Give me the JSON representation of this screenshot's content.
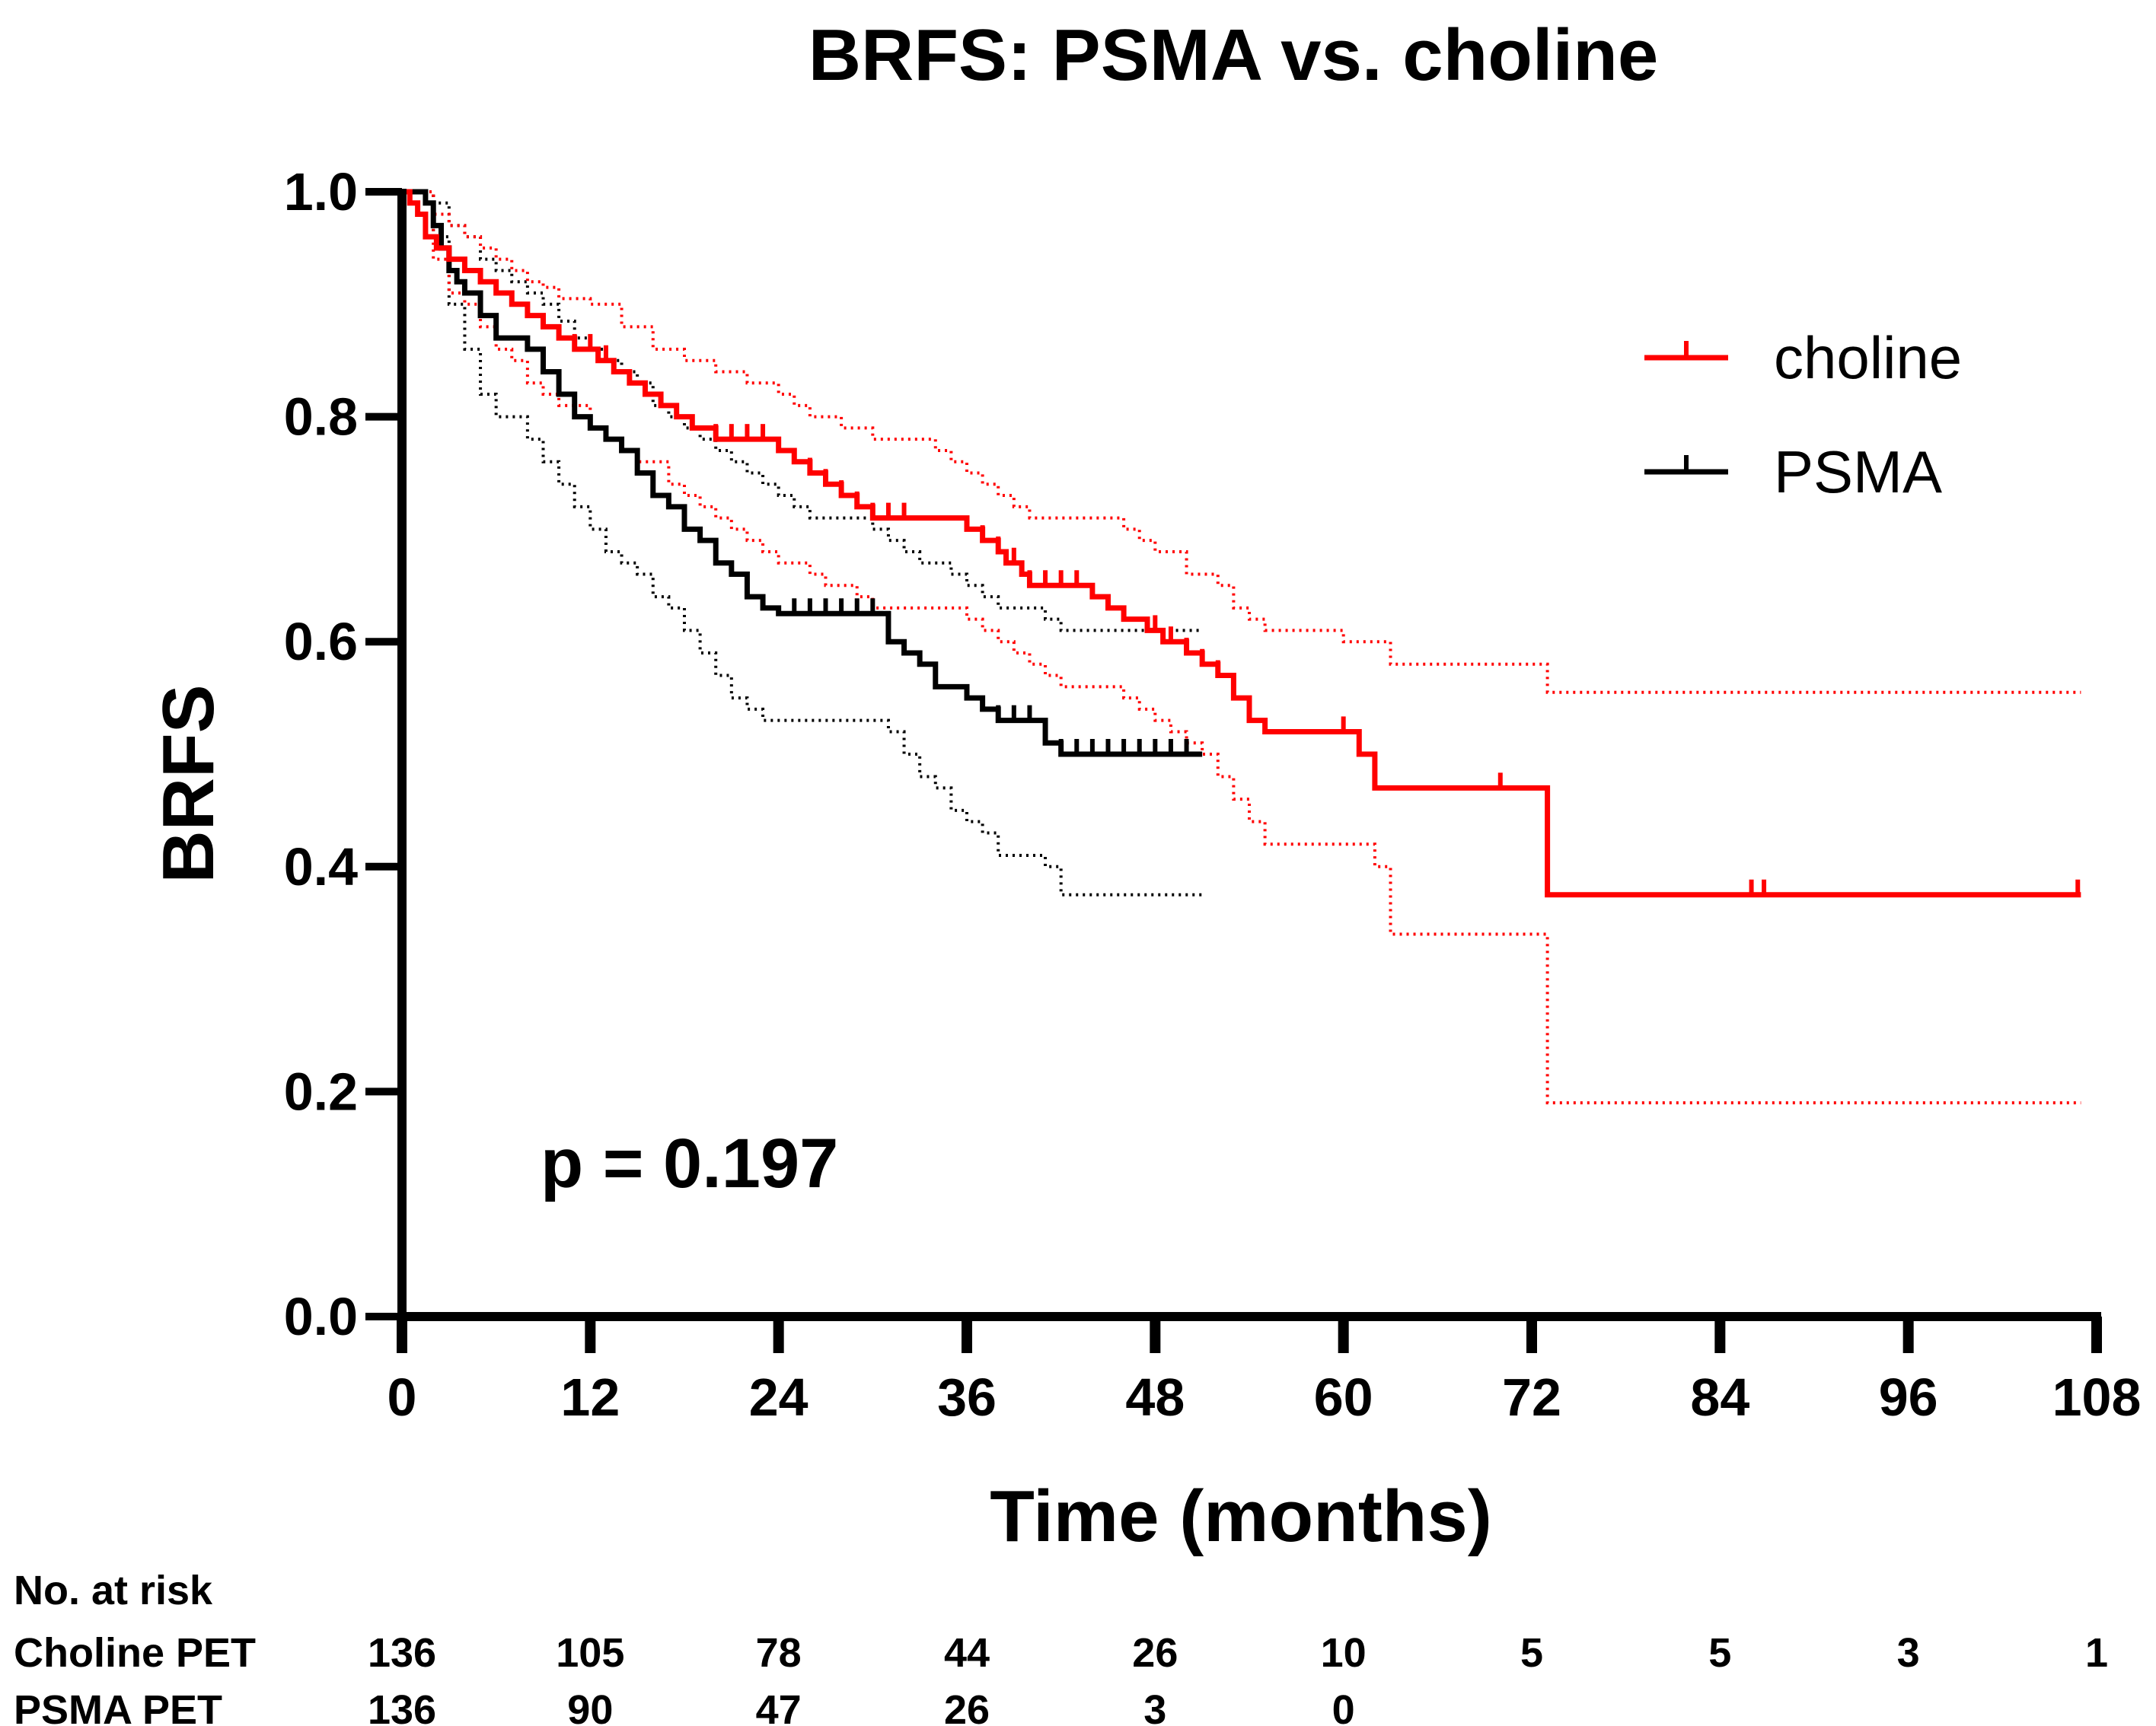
{
  "chart_data": {
    "type": "line",
    "subtype": "kaplan-meier",
    "title": "BRFS: PSMA vs. choline",
    "xlabel": "Time (months)",
    "ylabel": "BRFS",
    "xlim": [
      0,
      108
    ],
    "ylim": [
      0,
      1.0
    ],
    "xticks": [
      0,
      12,
      24,
      36,
      48,
      60,
      72,
      84,
      96,
      108
    ],
    "yticks": [
      0.0,
      0.2,
      0.4,
      0.6,
      0.8,
      1.0
    ],
    "ytick_labels": [
      "0.0",
      "0.2",
      "0.4",
      "0.6",
      "0.8",
      "1.0"
    ],
    "annotation": "p = 0.197",
    "legend_position": "top-right",
    "series": [
      {
        "name": "choline",
        "color": "#ff0000",
        "steps": [
          [
            0,
            1.0
          ],
          [
            0.5,
            0.99
          ],
          [
            1,
            0.98
          ],
          [
            1.5,
            0.96
          ],
          [
            2.2,
            0.95
          ],
          [
            3,
            0.94
          ],
          [
            4,
            0.93
          ],
          [
            5,
            0.92
          ],
          [
            6,
            0.91
          ],
          [
            7,
            0.9
          ],
          [
            8,
            0.89
          ],
          [
            9,
            0.88
          ],
          [
            10,
            0.87
          ],
          [
            11,
            0.86
          ],
          [
            12.5,
            0.85
          ],
          [
            13.5,
            0.84
          ],
          [
            14.5,
            0.83
          ],
          [
            15.5,
            0.82
          ],
          [
            16.5,
            0.81
          ],
          [
            17.5,
            0.8
          ],
          [
            18.5,
            0.79
          ],
          [
            20,
            0.78
          ],
          [
            24,
            0.77
          ],
          [
            25,
            0.76
          ],
          [
            26,
            0.75
          ],
          [
            27,
            0.74
          ],
          [
            28,
            0.73
          ],
          [
            29,
            0.72
          ],
          [
            30,
            0.71
          ],
          [
            36,
            0.7
          ],
          [
            37,
            0.69
          ],
          [
            38,
            0.68
          ],
          [
            38.5,
            0.67
          ],
          [
            39.5,
            0.66
          ],
          [
            40,
            0.65
          ],
          [
            44,
            0.64
          ],
          [
            45,
            0.63
          ],
          [
            46,
            0.62
          ],
          [
            47.5,
            0.61
          ],
          [
            48.5,
            0.6
          ],
          [
            50,
            0.59
          ],
          [
            51,
            0.58
          ],
          [
            52,
            0.57
          ],
          [
            53,
            0.55
          ],
          [
            54,
            0.53
          ],
          [
            55,
            0.52
          ],
          [
            61,
            0.5
          ],
          [
            62,
            0.47
          ],
          [
            73,
            0.375
          ],
          [
            107,
            0.375
          ]
        ],
        "censor": [
          11,
          12,
          13,
          20,
          21,
          22,
          23,
          26,
          27,
          28,
          29,
          30,
          31,
          32,
          37,
          38,
          39,
          40,
          41,
          42,
          43,
          48,
          49,
          50,
          51,
          52,
          53,
          54,
          60,
          61,
          62,
          70,
          86,
          86.8,
          106.8
        ],
        "ci_upper": [
          [
            0,
            1.0
          ],
          [
            2,
            0.98
          ],
          [
            3,
            0.97
          ],
          [
            4,
            0.96
          ],
          [
            5,
            0.95
          ],
          [
            6,
            0.94
          ],
          [
            7,
            0.93
          ],
          [
            8,
            0.92
          ],
          [
            9,
            0.915
          ],
          [
            10,
            0.905
          ],
          [
            12,
            0.9
          ],
          [
            14,
            0.88
          ],
          [
            16,
            0.86
          ],
          [
            18,
            0.85
          ],
          [
            20,
            0.84
          ],
          [
            22,
            0.83
          ],
          [
            24,
            0.82
          ],
          [
            25,
            0.81
          ],
          [
            26,
            0.8
          ],
          [
            28,
            0.79
          ],
          [
            30,
            0.78
          ],
          [
            34,
            0.77
          ],
          [
            35,
            0.76
          ],
          [
            36,
            0.75
          ],
          [
            37,
            0.74
          ],
          [
            38,
            0.73
          ],
          [
            39,
            0.72
          ],
          [
            40,
            0.71
          ],
          [
            46,
            0.7
          ],
          [
            47,
            0.69
          ],
          [
            48,
            0.68
          ],
          [
            50,
            0.66
          ],
          [
            52,
            0.65
          ],
          [
            53,
            0.63
          ],
          [
            54,
            0.62
          ],
          [
            55,
            0.61
          ],
          [
            60,
            0.6
          ],
          [
            63,
            0.58
          ],
          [
            73,
            0.555
          ],
          [
            107,
            0.555
          ]
        ],
        "ci_lower": [
          [
            0,
            1.0
          ],
          [
            2,
            0.94
          ],
          [
            3,
            0.91
          ],
          [
            4,
            0.9
          ],
          [
            5,
            0.88
          ],
          [
            6,
            0.86
          ],
          [
            7,
            0.85
          ],
          [
            8,
            0.83
          ],
          [
            9,
            0.82
          ],
          [
            10,
            0.81
          ],
          [
            12,
            0.79
          ],
          [
            13,
            0.78
          ],
          [
            14,
            0.77
          ],
          [
            15,
            0.76
          ],
          [
            17,
            0.74
          ],
          [
            18,
            0.73
          ],
          [
            19,
            0.72
          ],
          [
            20,
            0.71
          ],
          [
            21,
            0.7
          ],
          [
            22,
            0.69
          ],
          [
            23,
            0.68
          ],
          [
            24,
            0.67
          ],
          [
            26,
            0.66
          ],
          [
            27,
            0.65
          ],
          [
            29,
            0.64
          ],
          [
            30,
            0.63
          ],
          [
            36,
            0.62
          ],
          [
            37,
            0.61
          ],
          [
            38,
            0.6
          ],
          [
            39,
            0.59
          ],
          [
            40,
            0.58
          ],
          [
            41,
            0.57
          ],
          [
            42,
            0.56
          ],
          [
            46,
            0.55
          ],
          [
            47,
            0.54
          ],
          [
            48,
            0.53
          ],
          [
            49,
            0.52
          ],
          [
            50,
            0.51
          ],
          [
            51,
            0.5
          ],
          [
            52,
            0.48
          ],
          [
            53,
            0.46
          ],
          [
            54,
            0.44
          ],
          [
            55,
            0.42
          ],
          [
            62,
            0.4
          ],
          [
            63,
            0.34
          ],
          [
            73,
            0.19
          ],
          [
            107,
            0.19
          ]
        ]
      },
      {
        "name": "PSMA",
        "color": "#000000",
        "steps": [
          [
            0,
            1.0
          ],
          [
            1.5,
            0.99
          ],
          [
            2,
            0.97
          ],
          [
            2.5,
            0.95
          ],
          [
            3,
            0.93
          ],
          [
            3.5,
            0.92
          ],
          [
            4,
            0.91
          ],
          [
            5,
            0.89
          ],
          [
            6,
            0.87
          ],
          [
            8,
            0.86
          ],
          [
            9,
            0.84
          ],
          [
            10,
            0.82
          ],
          [
            11,
            0.8
          ],
          [
            12,
            0.79
          ],
          [
            13,
            0.78
          ],
          [
            14,
            0.77
          ],
          [
            15,
            0.75
          ],
          [
            16,
            0.73
          ],
          [
            17,
            0.72
          ],
          [
            18,
            0.7
          ],
          [
            19,
            0.69
          ],
          [
            20,
            0.67
          ],
          [
            21,
            0.66
          ],
          [
            22,
            0.64
          ],
          [
            23,
            0.63
          ],
          [
            24,
            0.625
          ],
          [
            31,
            0.6
          ],
          [
            32,
            0.59
          ],
          [
            33,
            0.58
          ],
          [
            34,
            0.56
          ],
          [
            36,
            0.55
          ],
          [
            37,
            0.54
          ],
          [
            38,
            0.53
          ],
          [
            41,
            0.51
          ],
          [
            42,
            0.5
          ],
          [
            51,
            0.5
          ]
        ],
        "censor": [
          25,
          26,
          27,
          28,
          29,
          30,
          38,
          39,
          40,
          41,
          42,
          43,
          44,
          45,
          46,
          47,
          48,
          49,
          50
        ],
        "ci_upper": [
          [
            0,
            1.0
          ],
          [
            2,
            0.99
          ],
          [
            3,
            0.97
          ],
          [
            4,
            0.96
          ],
          [
            5,
            0.94
          ],
          [
            6,
            0.93
          ],
          [
            7,
            0.92
          ],
          [
            8,
            0.91
          ],
          [
            9,
            0.9
          ],
          [
            10,
            0.885
          ],
          [
            11,
            0.87
          ],
          [
            12,
            0.86
          ],
          [
            13,
            0.85
          ],
          [
            14,
            0.84
          ],
          [
            15,
            0.83
          ],
          [
            16,
            0.81
          ],
          [
            17,
            0.8
          ],
          [
            18,
            0.79
          ],
          [
            19,
            0.78
          ],
          [
            20,
            0.77
          ],
          [
            21,
            0.76
          ],
          [
            22,
            0.75
          ],
          [
            23,
            0.74
          ],
          [
            24,
            0.73
          ],
          [
            25,
            0.72
          ],
          [
            26,
            0.71
          ],
          [
            30,
            0.7
          ],
          [
            31,
            0.69
          ],
          [
            32,
            0.68
          ],
          [
            33,
            0.67
          ],
          [
            35,
            0.66
          ],
          [
            36,
            0.65
          ],
          [
            37,
            0.64
          ],
          [
            38,
            0.63
          ],
          [
            41,
            0.62
          ],
          [
            42,
            0.61
          ],
          [
            51,
            0.61
          ]
        ],
        "ci_lower": [
          [
            0,
            1.0
          ],
          [
            2,
            0.96
          ],
          [
            3,
            0.9
          ],
          [
            4,
            0.86
          ],
          [
            5,
            0.82
          ],
          [
            6,
            0.8
          ],
          [
            8,
            0.78
          ],
          [
            9,
            0.76
          ],
          [
            10,
            0.74
          ],
          [
            11,
            0.72
          ],
          [
            12,
            0.7
          ],
          [
            13,
            0.68
          ],
          [
            14,
            0.67
          ],
          [
            15,
            0.66
          ],
          [
            16,
            0.64
          ],
          [
            17,
            0.63
          ],
          [
            18,
            0.61
          ],
          [
            19,
            0.59
          ],
          [
            20,
            0.57
          ],
          [
            21,
            0.55
          ],
          [
            22,
            0.54
          ],
          [
            23,
            0.53
          ],
          [
            31,
            0.52
          ],
          [
            32,
            0.5
          ],
          [
            33,
            0.48
          ],
          [
            34,
            0.47
          ],
          [
            35,
            0.45
          ],
          [
            36,
            0.44
          ],
          [
            37,
            0.43
          ],
          [
            38,
            0.41
          ],
          [
            41,
            0.4
          ],
          [
            42,
            0.375
          ],
          [
            51,
            0.375
          ]
        ]
      }
    ],
    "risk_table": {
      "heading": "No. at risk",
      "rows": [
        {
          "label": "Choline PET",
          "values": [
            "136",
            "105",
            "78",
            "44",
            "26",
            "10",
            "5",
            "5",
            "3",
            "1"
          ]
        },
        {
          "label": "PSMA PET",
          "values": [
            "136",
            "90",
            "47",
            "26",
            "3",
            "0"
          ]
        }
      ]
    }
  }
}
